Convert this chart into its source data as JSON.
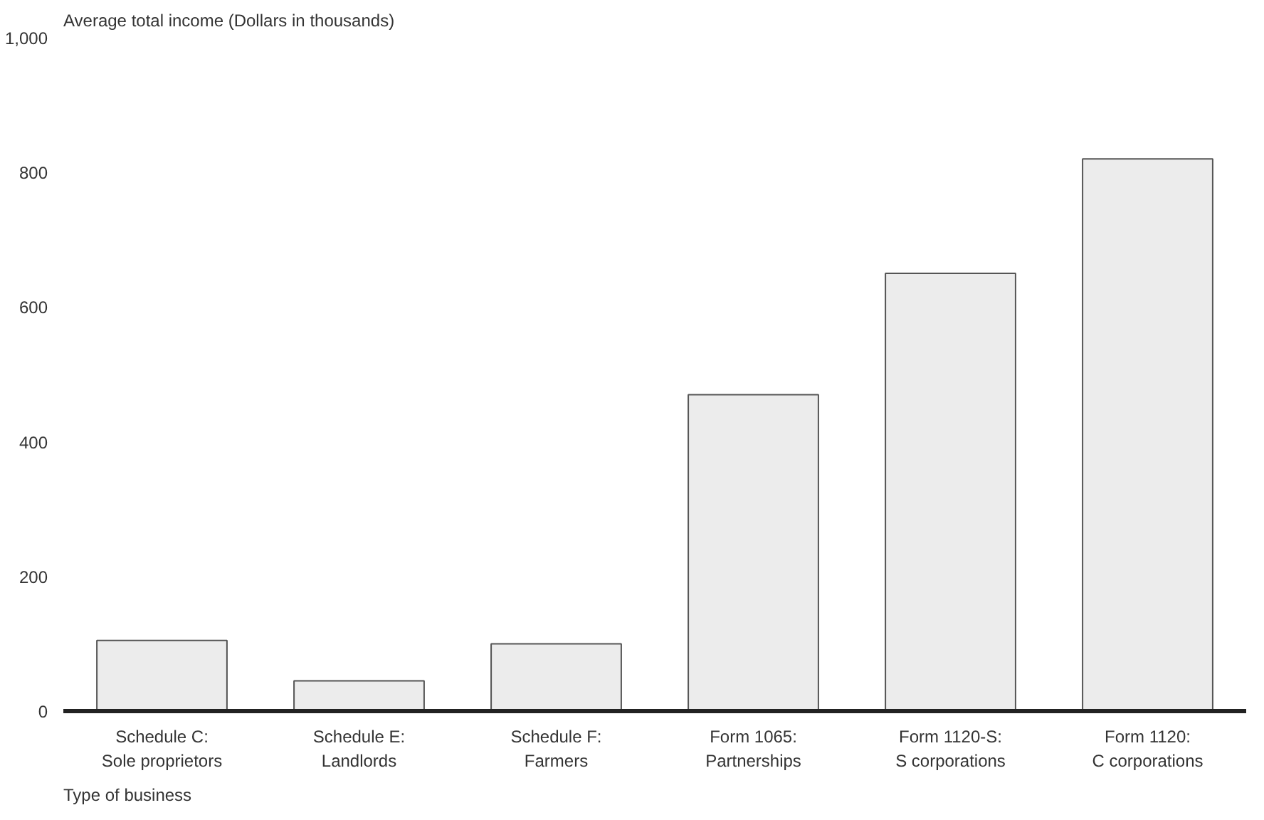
{
  "chart_data": {
    "type": "bar",
    "ylabel": "Average total income (Dollars in thousands)",
    "xlabel": "Type of business",
    "categories": [
      "Schedule C:\nSole proprietors",
      "Schedule E:\nLandlords",
      "Schedule F:\nFarmers",
      "Form 1065:\nPartnerships",
      "Form 1120-S:\nS corporations",
      "Form 1120:\nC corporations"
    ],
    "values": [
      105,
      45,
      100,
      470,
      650,
      820
    ],
    "color": "#ececec",
    "ylim": [
      0,
      1000
    ],
    "yticks": [
      0,
      200,
      400,
      600,
      800,
      {
        "value": 1000,
        "label": "1,000"
      }
    ],
    "grid": false
  }
}
